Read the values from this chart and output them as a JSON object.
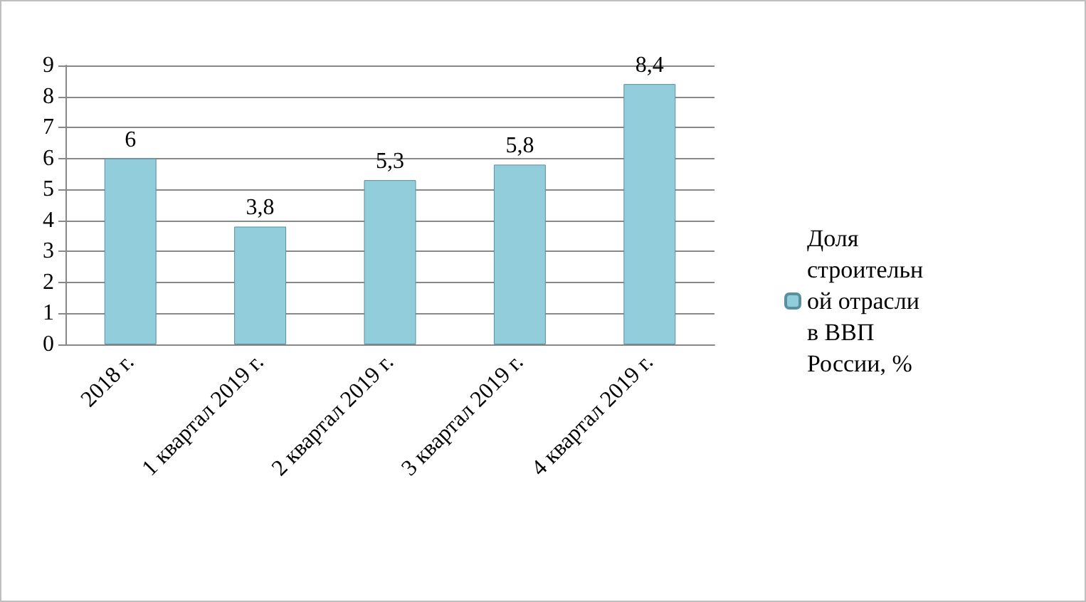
{
  "chart_data": {
    "type": "bar",
    "categories": [
      "2018 г.",
      "1 квартал 2019 г.",
      "2 квартал 2019 г.",
      "3 квартал 2019 г.",
      "4 квартал 2019 г."
    ],
    "series": [
      {
        "name": "Доля строительной отрасли в ВВП России, %",
        "color": "#92cddc",
        "values": [
          6,
          3.8,
          5.3,
          5.8,
          8.4
        ],
        "value_labels": [
          "6",
          "3,8",
          "5,3",
          "5,8",
          "8,4"
        ]
      }
    ],
    "ylim": [
      0,
      9
    ],
    "yticks": [
      0,
      1,
      2,
      3,
      4,
      5,
      6,
      7,
      8,
      9
    ],
    "grid": "y",
    "legend": "right"
  }
}
